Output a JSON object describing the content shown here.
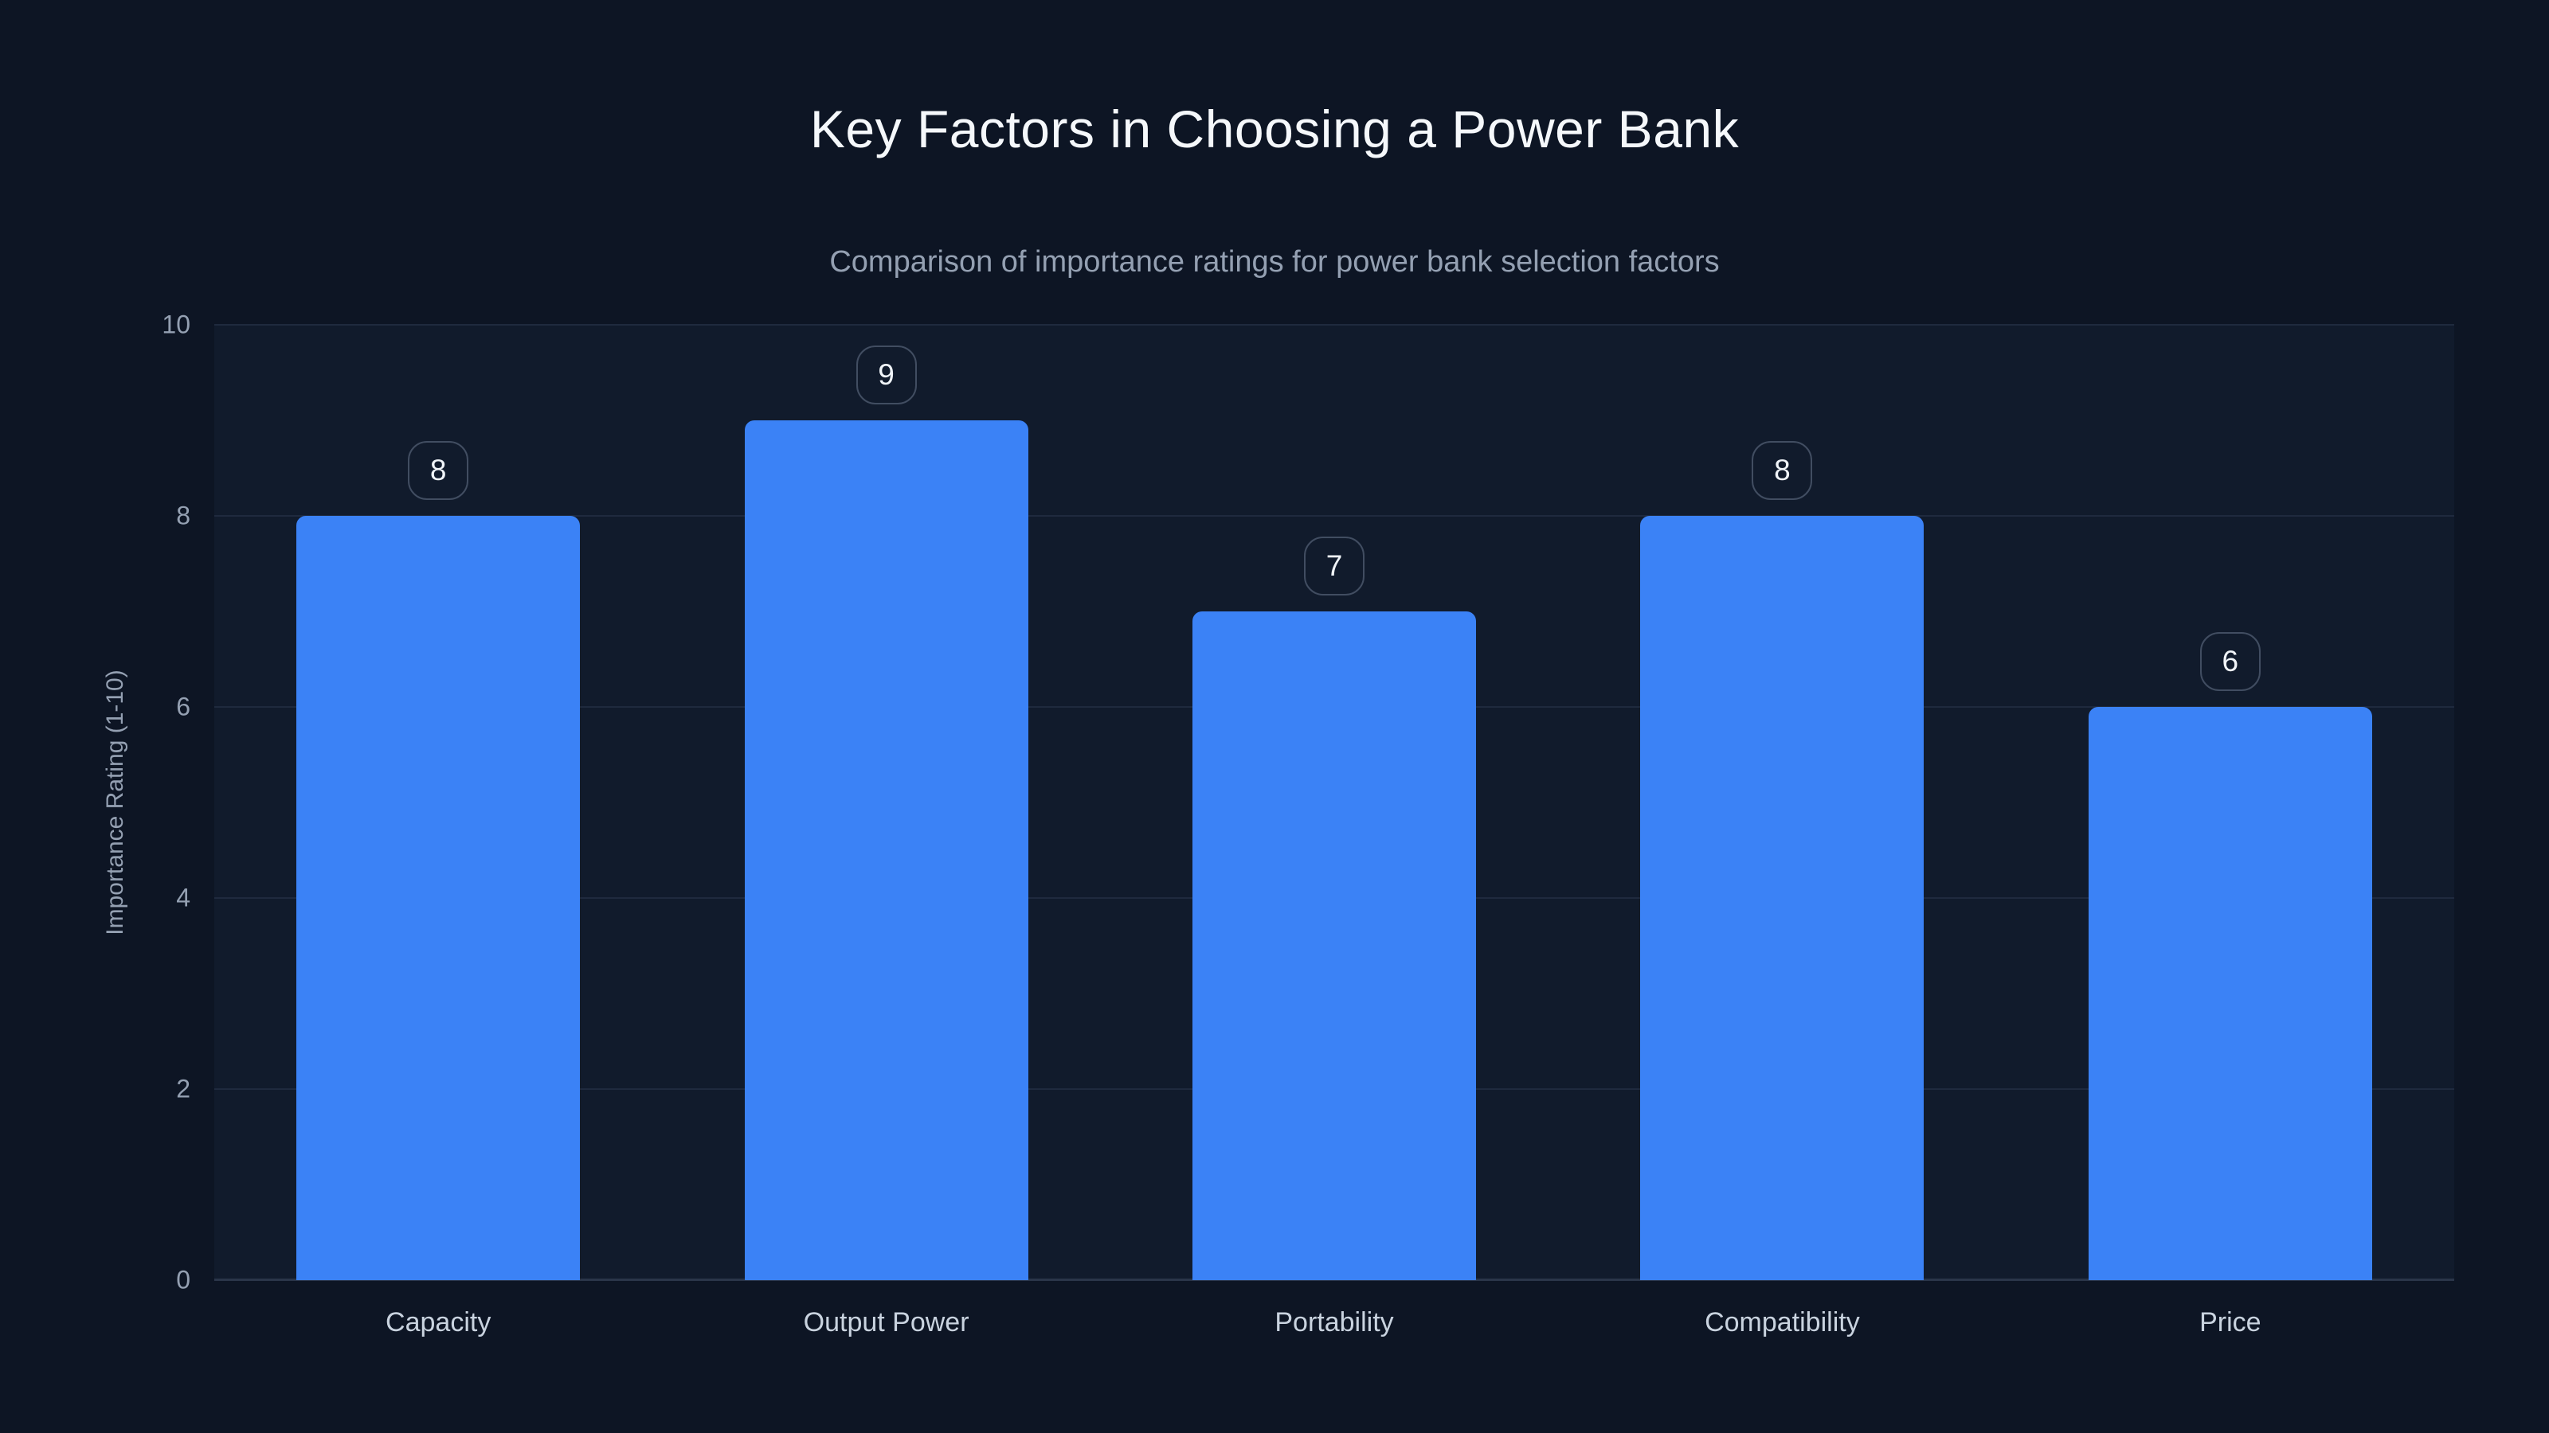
{
  "header": {
    "title": "Key Factors in Choosing a Power Bank",
    "subtitle": "Comparison of importance ratings for power bank selection factors"
  },
  "chart_data": {
    "type": "bar",
    "title": "Key Factors in Choosing a Power Bank",
    "subtitle": "Comparison of importance ratings for power bank selection factors",
    "categories": [
      "Capacity",
      "Output Power",
      "Portability",
      "Compatibility",
      "Price"
    ],
    "values": [
      8,
      9,
      7,
      8,
      6
    ],
    "value_labels": [
      "8",
      "9",
      "7",
      "8",
      "6"
    ],
    "xlabel": "",
    "ylabel": "Importance Rating (1-10)",
    "ylim": [
      0,
      10
    ],
    "yticks": [
      0,
      2,
      4,
      6,
      8,
      10
    ],
    "grid": true,
    "legend": false,
    "colors": {
      "background": "#0d1524",
      "plot_background": "#111b2c",
      "bar": "#3b82f6",
      "gridline": "#1f2a3e",
      "axis_line": "#2a3549",
      "title_text": "#f5f8fb",
      "subtitle_text": "#94a0b2",
      "tick_text": "#94a0b2",
      "category_text": "#c9d3df",
      "badge_border": "#414d61",
      "badge_text": "#f0f4f8"
    }
  }
}
